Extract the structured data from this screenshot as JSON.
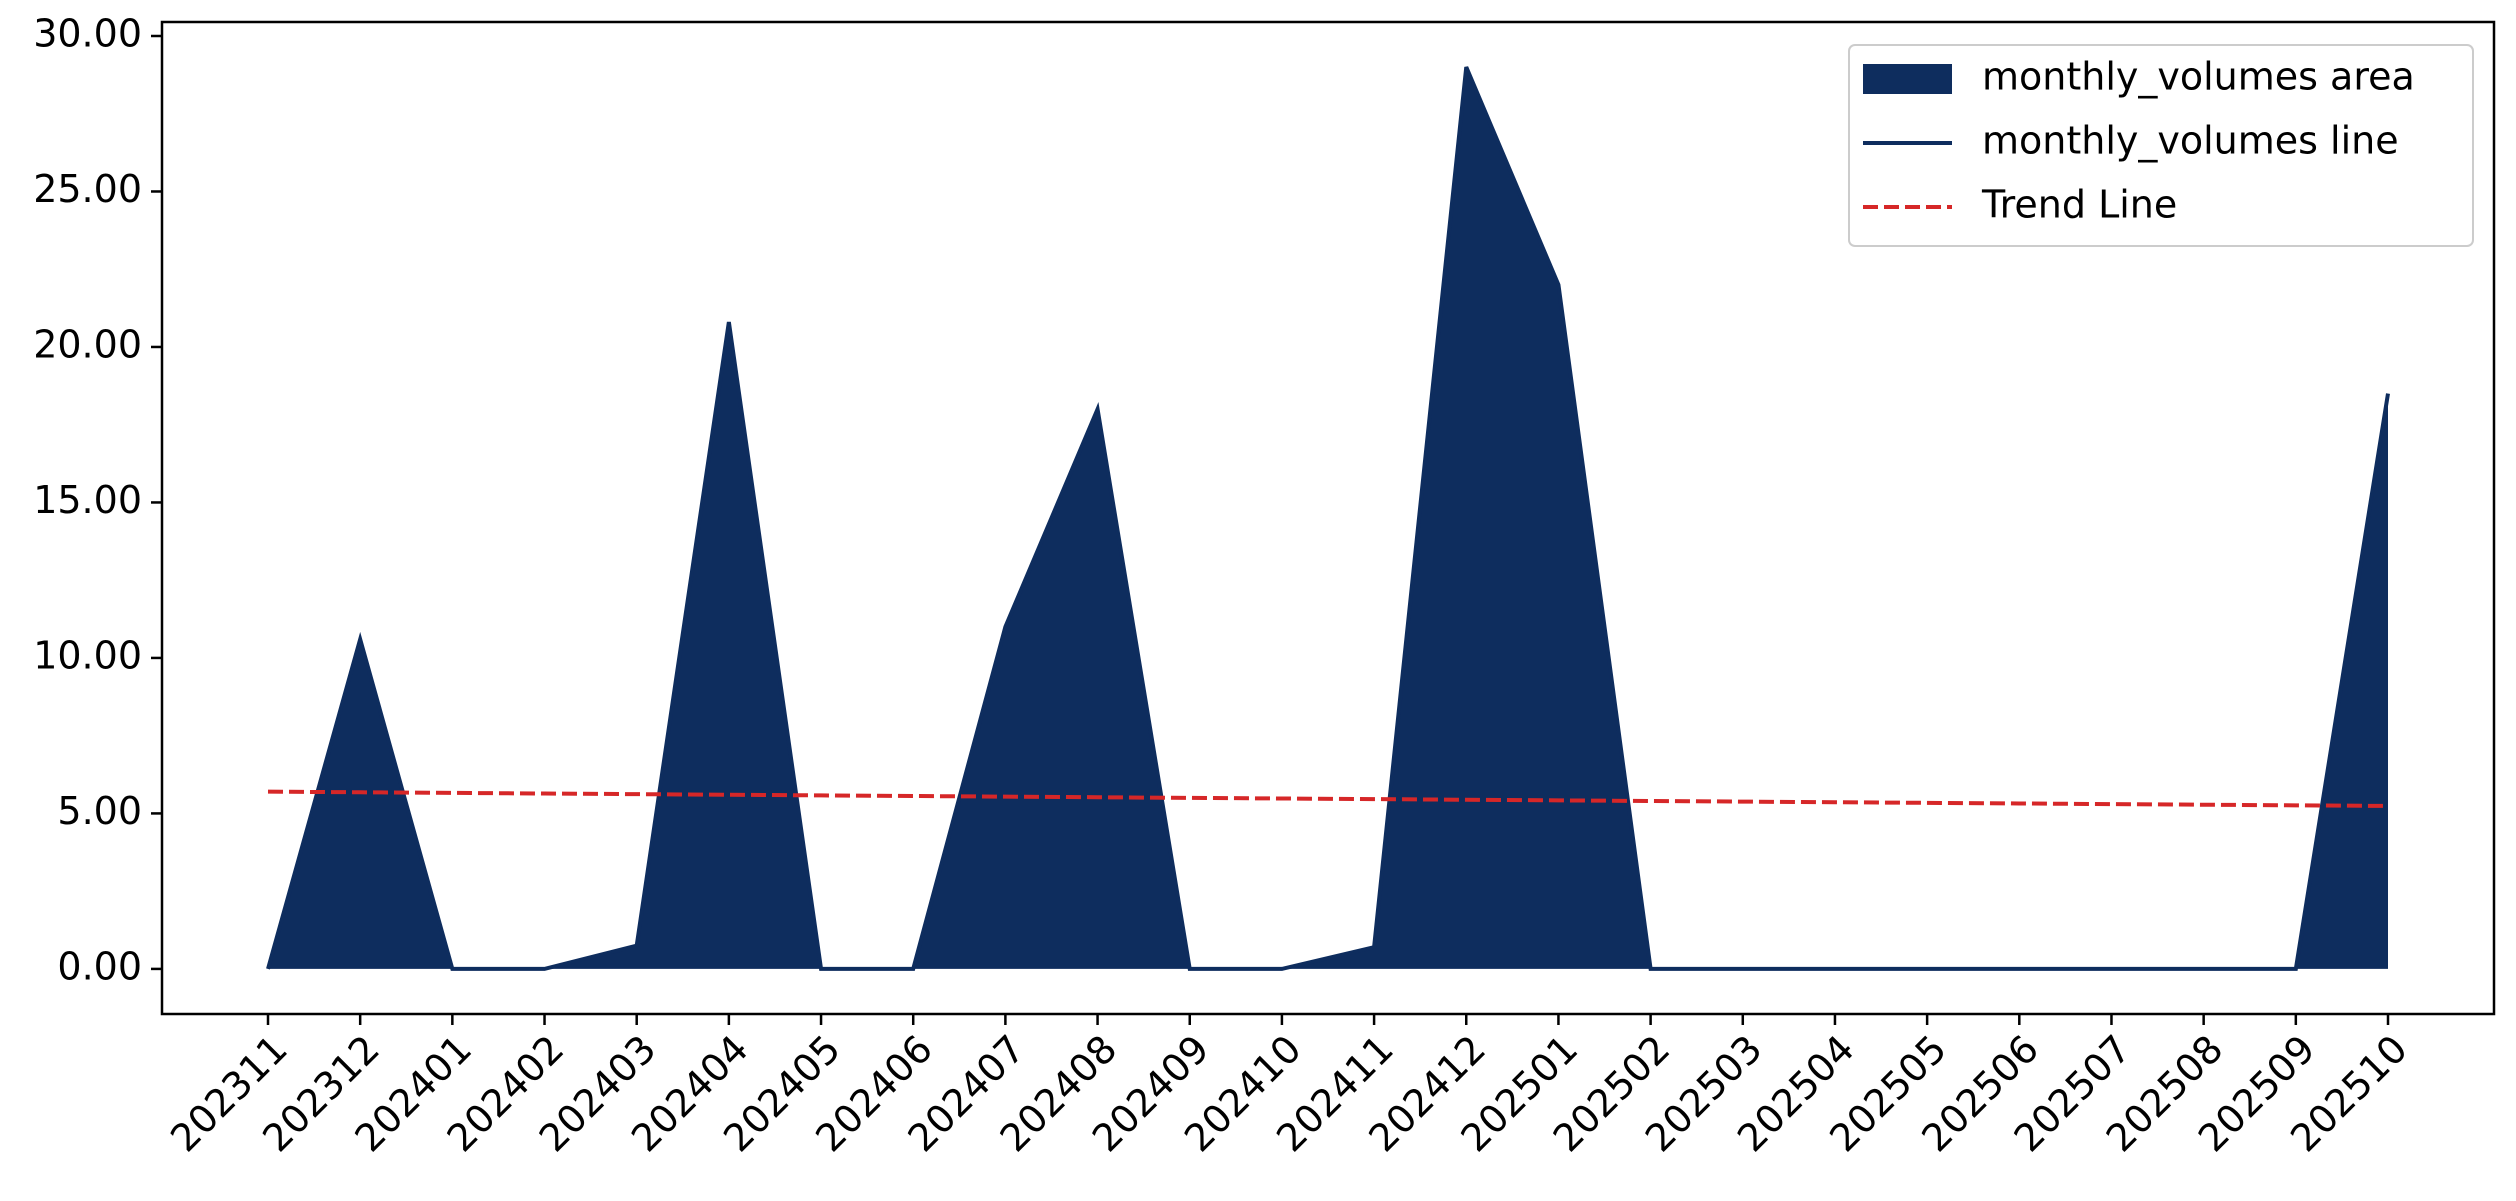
{
  "chart_data": {
    "type": "area",
    "categories": [
      "202311",
      "202312",
      "202401",
      "202402",
      "202403",
      "202404",
      "202405",
      "202406",
      "202407",
      "202408",
      "202409",
      "202410",
      "202411",
      "202412",
      "202501",
      "202502",
      "202503",
      "202504",
      "202505",
      "202506",
      "202507",
      "202508",
      "202509",
      "202510"
    ],
    "series": [
      {
        "name": "monthly_volumes area",
        "color": "#0e2d5e",
        "kind": "area",
        "values": [
          0,
          10.6,
          0,
          0,
          0.75,
          20.8,
          0,
          0,
          11,
          18,
          0,
          0,
          0.7,
          29,
          22,
          0,
          0,
          0,
          0,
          0,
          0,
          0,
          0,
          18.5
        ]
      },
      {
        "name": "monthly_volumes line",
        "color": "#0e2d5e",
        "kind": "line",
        "values": [
          0,
          10.6,
          0,
          0,
          0.75,
          20.8,
          0,
          0,
          11,
          18,
          0,
          0,
          0.7,
          29,
          22,
          0,
          0,
          0,
          0,
          0,
          0,
          0,
          0,
          18.5
        ]
      },
      {
        "name": "Trend Line",
        "color": "#d62728",
        "kind": "dashed",
        "values": [
          5.7,
          5.68,
          5.66,
          5.64,
          5.62,
          5.6,
          5.58,
          5.56,
          5.54,
          5.52,
          5.5,
          5.48,
          5.46,
          5.44,
          5.42,
          5.4,
          5.38,
          5.36,
          5.34,
          5.32,
          5.3,
          5.28,
          5.26,
          5.24
        ]
      }
    ],
    "ylim": [
      -1.45,
      30.45
    ],
    "yticks": [
      {
        "value": 0,
        "label": "0.00"
      },
      {
        "value": 5,
        "label": "5.00"
      },
      {
        "value": 10,
        "label": "10.00"
      },
      {
        "value": 15,
        "label": "15.00"
      },
      {
        "value": 20,
        "label": "20.00"
      },
      {
        "value": 25,
        "label": "25.00"
      },
      {
        "value": 30,
        "label": "30.00"
      }
    ],
    "legend": "upper right"
  }
}
